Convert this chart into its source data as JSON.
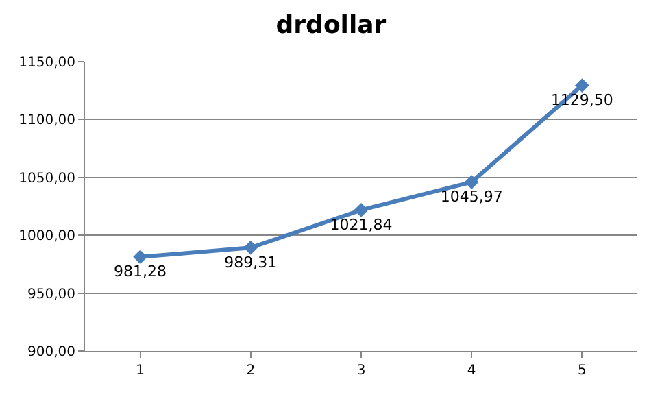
{
  "chart_data": {
    "type": "line",
    "title": "drdollar",
    "categories": [
      "1",
      "2",
      "3",
      "4",
      "5"
    ],
    "series": [
      {
        "color": "#4a7ebb",
        "values": [
          981.28,
          989.31,
          1021.84,
          1045.97,
          1129.5
        ],
        "value_labels": [
          "981,28",
          "989,31",
          "1021,84",
          "1045,97",
          "1129,50"
        ]
      }
    ],
    "ylim": [
      900,
      1150
    ],
    "yticks": [
      {
        "value": 900,
        "label": "900,00"
      },
      {
        "value": 950,
        "label": "950,00"
      },
      {
        "value": 1000,
        "label": "1000,00"
      },
      {
        "value": 1050,
        "label": "1050,00"
      },
      {
        "value": 1100,
        "label": "1100,00"
      },
      {
        "value": 1150,
        "label": "1150,00"
      }
    ],
    "grid": "y",
    "legend": false,
    "marker": "diamond",
    "line_style": "solid"
  }
}
